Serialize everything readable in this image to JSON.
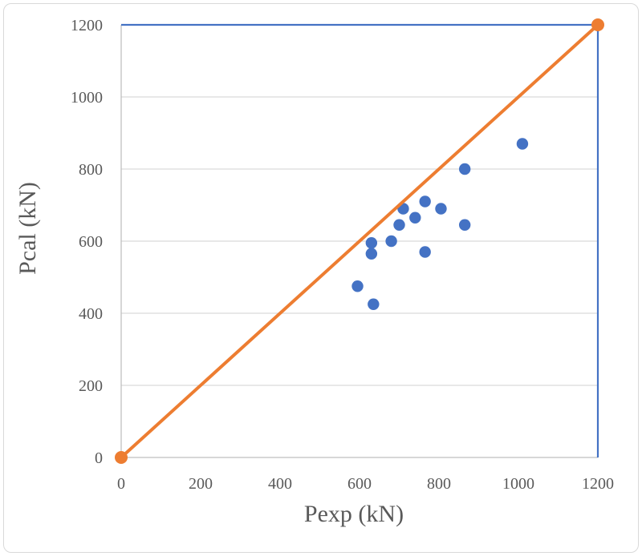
{
  "chart_data": {
    "type": "scatter",
    "title": "",
    "xlabel": "Pexp (kN)",
    "ylabel": "Pcal (kN)",
    "xlim": [
      0,
      1200
    ],
    "ylim": [
      0,
      1200
    ],
    "xticks": [
      0,
      200,
      400,
      600,
      800,
      1000,
      1200
    ],
    "yticks": [
      0,
      200,
      400,
      600,
      800,
      1000,
      1200
    ],
    "grid": "horizontal-only",
    "legend": "none",
    "series": [
      {
        "name": "Pcal vs Pexp data points",
        "type": "scatter",
        "marker": "circle",
        "color": "#4472C4",
        "points": [
          [
            595,
            475
          ],
          [
            630,
            595
          ],
          [
            630,
            565
          ],
          [
            635,
            425
          ],
          [
            680,
            600
          ],
          [
            700,
            645
          ],
          [
            710,
            690
          ],
          [
            740,
            665
          ],
          [
            765,
            570
          ],
          [
            765,
            710
          ],
          [
            805,
            690
          ],
          [
            865,
            645
          ],
          [
            865,
            800
          ],
          [
            1010,
            870
          ]
        ]
      },
      {
        "name": "1:1 equality line",
        "type": "line",
        "color": "#ED7D31",
        "endpoint_markers": true,
        "points": [
          [
            0,
            0
          ],
          [
            1200,
            1200
          ]
        ]
      }
    ],
    "colors": {
      "scatter": "#4472C4",
      "line": "#ED7D31",
      "gridline": "#D9D9D9",
      "axis_line": "#BFBFBF",
      "plot_border_top_right": "#4472C4",
      "text": "#595959",
      "figure_border": "#D9D9D9"
    }
  }
}
